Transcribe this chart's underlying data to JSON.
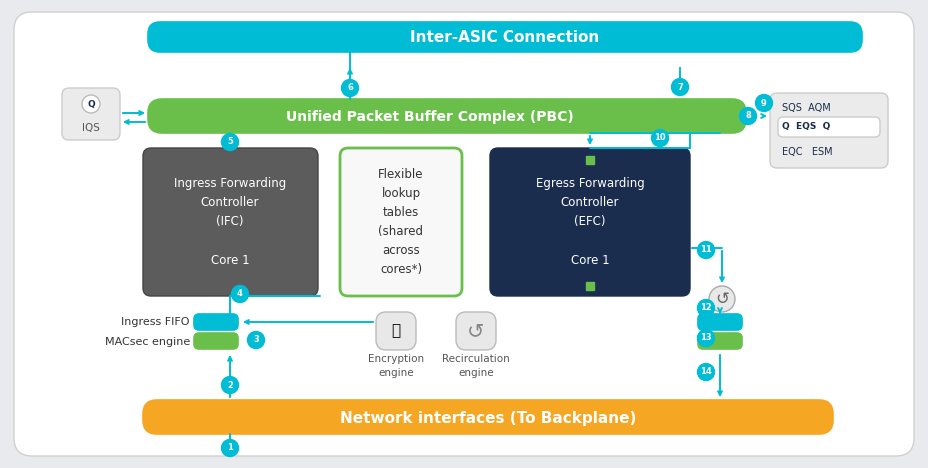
{
  "bg_color": "#e8eaed",
  "card_color": "#ffffff",
  "inter_asic_color": "#00bcd4",
  "inter_asic_text": "Inter-ASIC Connection",
  "pbc_color": "#6abf4b",
  "pbc_text": "Unified Packet Buffer Complex (PBC)",
  "network_color": "#f5a623",
  "network_text": "Network interfaces (To Backplane)",
  "ifc_color": "#5c5c5c",
  "ifc_text": "Ingress Forwarding\nController\n(IFC)\n\nCore 1",
  "flex_text": "Flexible\nlookup\ntables\n(shared\nacross\ncores*)",
  "flex_border": "#6abf4b",
  "efc_color": "#1b2d4f",
  "efc_text": "Egress Forwarding\nController\n(EFC)\n\nCore 1",
  "arrow_color": "#00bcd4",
  "iqs_text": "IQS",
  "sqs_text": "SQS  AQM",
  "eqs_text": "Q  EQS  Q",
  "eqc_text": "EQC   ESM",
  "ingress_fifo_text": "Ingress FIFO",
  "macsec_text": "MACsec engine",
  "enc_text": "Encryption\nengine",
  "recirc_text": "Recirculation\nengine",
  "green_dot": "#6abf4b",
  "fifo_color": "#00bcd4",
  "macsec_color": "#6abf4b"
}
